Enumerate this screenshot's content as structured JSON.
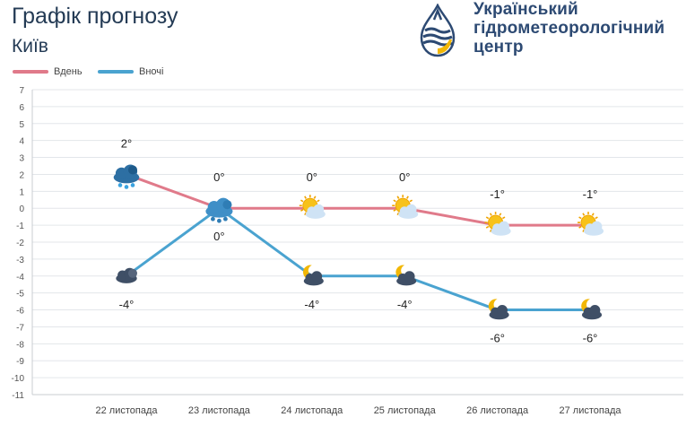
{
  "header": {
    "title": "Графік прогнозу",
    "city": "Київ",
    "org_lines": [
      "Український",
      "гідрометеорологічний",
      "центр"
    ]
  },
  "legend": [
    {
      "label": "Вдень",
      "color": "#e07a8a"
    },
    {
      "label": "Вночі",
      "color": "#4aa3d0"
    }
  ],
  "chart_data": {
    "type": "line",
    "categories": [
      "22 листопада",
      "23 листопада",
      "24 листопада",
      "25 листопада",
      "26 листопада",
      "27 листопада"
    ],
    "ylim": [
      -11,
      7
    ],
    "yticks": [
      7,
      6,
      5,
      4,
      3,
      2,
      1,
      0,
      -1,
      -2,
      -3,
      -4,
      -5,
      -6,
      -7,
      -8,
      -9,
      -10,
      -11
    ],
    "grid": true,
    "legend_position": "top-left",
    "series": [
      {
        "name": "Вдень",
        "color": "#e07a8a",
        "values": [
          2,
          0,
          0,
          0,
          -1,
          -1
        ],
        "labels": [
          "2°",
          "0°",
          "0°",
          "0°",
          "-1°",
          "-1°"
        ],
        "label_position": "above",
        "icons": [
          "snow-rain-cloud-icon",
          "snow-cloud-icon",
          "sun-cloud-icon",
          "sun-cloud-icon",
          "sun-cloud-icon",
          "sun-cloud-icon"
        ]
      },
      {
        "name": "Вночі",
        "color": "#4aa3d0",
        "values": [
          -4,
          0,
          -4,
          -4,
          -6,
          -6
        ],
        "labels": [
          "-4°",
          "0°",
          "-4°",
          "-4°",
          "-6°",
          "-6°"
        ],
        "label_position": "below",
        "icons": [
          "dark-cloud-icon",
          "snow-cloud-icon",
          "moon-cloud-icon",
          "moon-cloud-icon",
          "moon-cloud-icon",
          "moon-cloud-icon"
        ]
      }
    ]
  }
}
